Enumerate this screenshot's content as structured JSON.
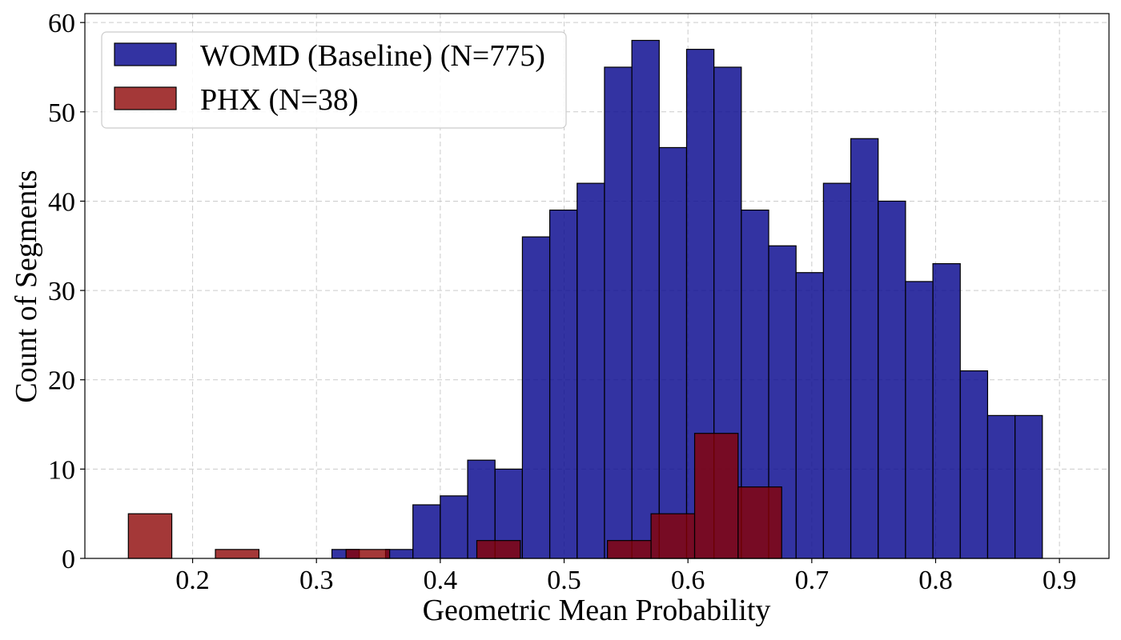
{
  "chart_data": {
    "type": "bar",
    "title": "",
    "xlabel": "Geometric Mean Probability",
    "ylabel": "Count of Segments",
    "xlim": [
      0.113,
      0.94
    ],
    "ylim": [
      0,
      61
    ],
    "xticks": [
      "0.2",
      "0.3",
      "0.4",
      "0.5",
      "0.6",
      "0.7",
      "0.8",
      "0.9"
    ],
    "yticks": [
      "0",
      "10",
      "20",
      "30",
      "40",
      "50",
      "60"
    ],
    "grid": true,
    "legend_position": "top-left",
    "series": [
      {
        "name": "WOMD (Baseline) (N=775)",
        "color": "#0a0a8f",
        "opacity": 0.83,
        "bins": [
          {
            "x0": 0.3125,
            "x1": 0.3346,
            "value": 1
          },
          {
            "x0": 0.3558,
            "x1": 0.3779,
            "value": 1
          },
          {
            "x0": 0.3779,
            "x1": 0.4,
            "value": 6
          },
          {
            "x0": 0.4,
            "x1": 0.4221,
            "value": 7
          },
          {
            "x0": 0.4221,
            "x1": 0.4442,
            "value": 11
          },
          {
            "x0": 0.4442,
            "x1": 0.4663,
            "value": 10
          },
          {
            "x0": 0.4663,
            "x1": 0.4884,
            "value": 36
          },
          {
            "x0": 0.4884,
            "x1": 0.5105,
            "value": 39
          },
          {
            "x0": 0.5105,
            "x1": 0.5326,
            "value": 42
          },
          {
            "x0": 0.5326,
            "x1": 0.5547,
            "value": 55
          },
          {
            "x0": 0.5547,
            "x1": 0.5768,
            "value": 58
          },
          {
            "x0": 0.5768,
            "x1": 0.5989,
            "value": 46
          },
          {
            "x0": 0.5989,
            "x1": 0.621,
            "value": 57
          },
          {
            "x0": 0.621,
            "x1": 0.6431,
            "value": 55
          },
          {
            "x0": 0.6431,
            "x1": 0.6652,
            "value": 39
          },
          {
            "x0": 0.6652,
            "x1": 0.6873,
            "value": 35
          },
          {
            "x0": 0.6873,
            "x1": 0.7094,
            "value": 32
          },
          {
            "x0": 0.7094,
            "x1": 0.7315,
            "value": 42
          },
          {
            "x0": 0.7315,
            "x1": 0.7536,
            "value": 47
          },
          {
            "x0": 0.7536,
            "x1": 0.7757,
            "value": 40
          },
          {
            "x0": 0.7757,
            "x1": 0.7978,
            "value": 31
          },
          {
            "x0": 0.7978,
            "x1": 0.8199,
            "value": 33
          },
          {
            "x0": 0.8199,
            "x1": 0.842,
            "value": 21
          },
          {
            "x0": 0.842,
            "x1": 0.8641,
            "value": 16
          },
          {
            "x0": 0.8641,
            "x1": 0.8862,
            "value": 16
          }
        ]
      },
      {
        "name": "PHX (N=38)",
        "color": "#8b0000",
        "opacity": 0.78,
        "bins": [
          {
            "x0": 0.1481,
            "x1": 0.1832,
            "value": 5
          },
          {
            "x0": 0.2184,
            "x1": 0.2536,
            "value": 1
          },
          {
            "x0": 0.3239,
            "x1": 0.3591,
            "value": 1
          },
          {
            "x0": 0.4295,
            "x1": 0.4646,
            "value": 2
          },
          {
            "x0": 0.535,
            "x1": 0.5702,
            "value": 2
          },
          {
            "x0": 0.5702,
            "x1": 0.6054,
            "value": 5
          },
          {
            "x0": 0.6054,
            "x1": 0.6405,
            "value": 14
          },
          {
            "x0": 0.6405,
            "x1": 0.6757,
            "value": 8
          }
        ]
      }
    ]
  }
}
